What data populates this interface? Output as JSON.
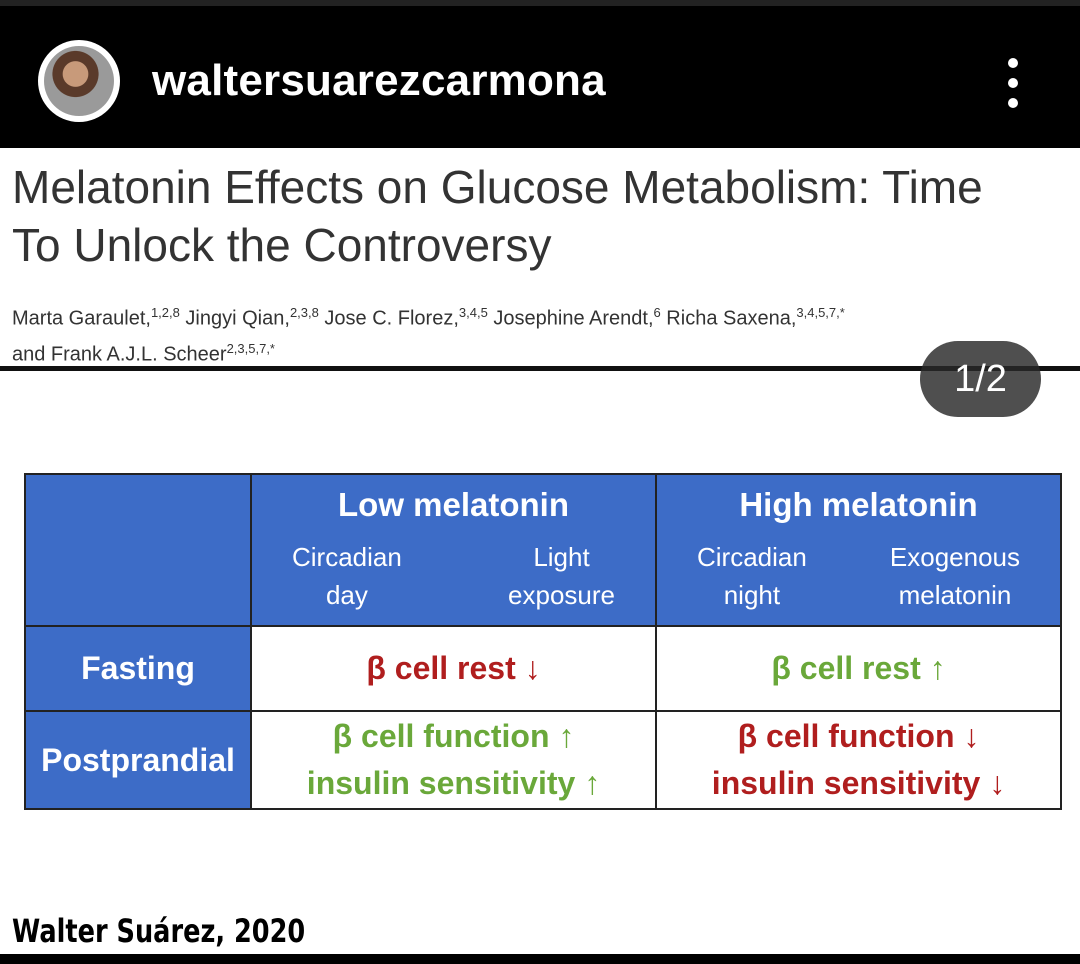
{
  "header": {
    "username": "waltersuarezcarmona",
    "avatar_icon": "profile-photo",
    "menu_icon": "more-vertical-icon"
  },
  "post": {
    "paper_title_line1": "Melatonin Effects on Glucose Metabolism: Time",
    "paper_title_line2": "To Unlock the Controversy",
    "authors": {
      "a1": "Marta Garaulet,",
      "a1_sup": "1,2,8",
      "a2": " Jingyi Qian,",
      "a2_sup": "2,3,8",
      "a3": " Jose C. Florez,",
      "a3_sup": "3,4,5",
      "a4": " Josephine Arendt,",
      "a4_sup": "6",
      "a5": " Richa Saxena,",
      "a5_sup": "3,4,5,7,*",
      "a6": "and Frank A.J.L. Scheer",
      "a6_sup": "2,3,5,7,*"
    },
    "page_indicator": "1/2",
    "credit": "Walter Suárez, 2020"
  },
  "table": {
    "low_header": "Low melatonin",
    "high_header": "High melatonin",
    "low_sub1": [
      "Circadian",
      "day"
    ],
    "low_sub2": [
      "Light",
      "exposure"
    ],
    "high_sub1": [
      "Circadian",
      "night"
    ],
    "high_sub2": [
      "Exogenous",
      "melatonin"
    ],
    "row1_label": "Fasting",
    "row2_label": "Postprandial",
    "fasting_low": "β cell rest ↓",
    "fasting_high": "β cell rest ↑",
    "post_low_1": "β cell function ↑",
    "post_low_2": "insulin sensitivity ↑",
    "post_high_1": "β cell function ↓",
    "post_high_2": "insulin sensitivity ↓"
  },
  "colors": {
    "header_blue": "#3d6cc7",
    "decrease_red": "#b01e1e",
    "increase_green": "#6aa83a"
  }
}
